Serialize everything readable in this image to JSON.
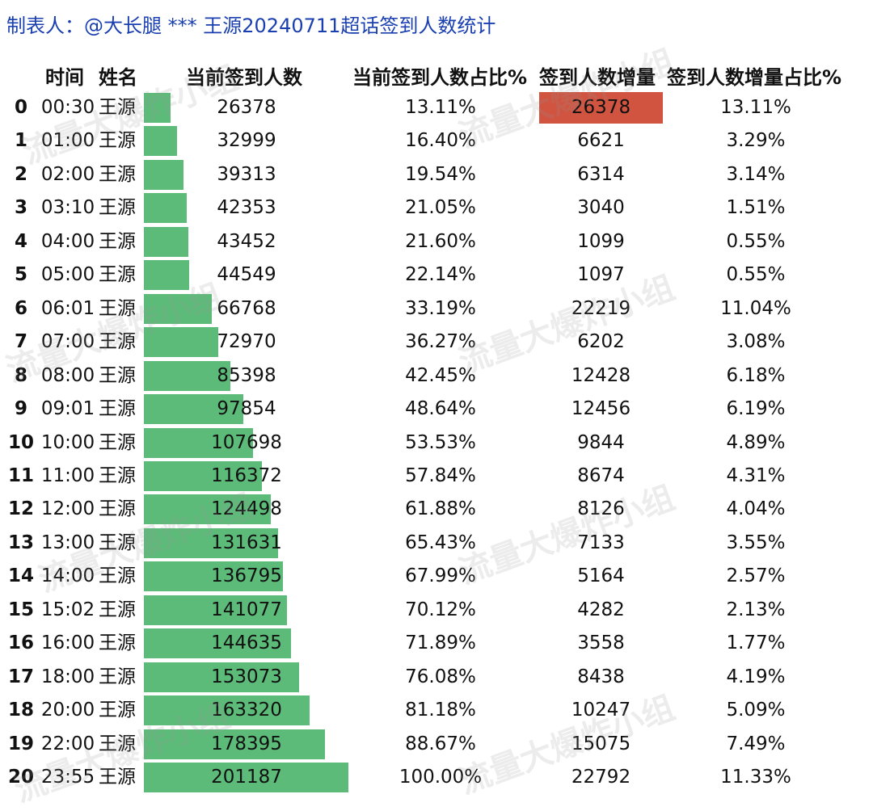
{
  "title": "制表人：@大长腿 *** 王源20240711超话签到人数统计",
  "watermark": "流量大爆炸小组",
  "headers": {
    "time": "时间",
    "name": "姓名",
    "count": "当前签到人数",
    "pct": "当前签到人数占比%",
    "inc": "签到人数增量",
    "incpct": "签到人数增量占比%"
  },
  "colors": {
    "bar": "#5dbb7a",
    "highlight": "#d05440",
    "title": "#1a3fb0"
  },
  "chart_data": {
    "type": "table",
    "columns": [
      "",
      "时间",
      "姓名",
      "当前签到人数",
      "当前签到人数占比%",
      "签到人数增量",
      "签到人数增量占比%"
    ],
    "bar_max": 201187,
    "rows": [
      {
        "idx": "0",
        "time": "00:30",
        "name": "王源",
        "count": 26378,
        "pct": "13.11%",
        "inc": "26378",
        "incpct": "13.11%"
      },
      {
        "idx": "1",
        "time": "01:00",
        "name": "王源",
        "count": 32999,
        "pct": "16.40%",
        "inc": "6621",
        "incpct": "3.29%"
      },
      {
        "idx": "2",
        "time": "02:00",
        "name": "王源",
        "count": 39313,
        "pct": "19.54%",
        "inc": "6314",
        "incpct": "3.14%"
      },
      {
        "idx": "3",
        "time": "03:10",
        "name": "王源",
        "count": 42353,
        "pct": "21.05%",
        "inc": "3040",
        "incpct": "1.51%"
      },
      {
        "idx": "4",
        "time": "04:00",
        "name": "王源",
        "count": 43452,
        "pct": "21.60%",
        "inc": "1099",
        "incpct": "0.55%"
      },
      {
        "idx": "5",
        "time": "05:00",
        "name": "王源",
        "count": 44549,
        "pct": "22.14%",
        "inc": "1097",
        "incpct": "0.55%"
      },
      {
        "idx": "6",
        "time": "06:01",
        "name": "王源",
        "count": 66768,
        "pct": "33.19%",
        "inc": "22219",
        "incpct": "11.04%"
      },
      {
        "idx": "7",
        "time": "07:00",
        "name": "王源",
        "count": 72970,
        "pct": "36.27%",
        "inc": "6202",
        "incpct": "3.08%"
      },
      {
        "idx": "8",
        "time": "08:00",
        "name": "王源",
        "count": 85398,
        "pct": "42.45%",
        "inc": "12428",
        "incpct": "6.18%"
      },
      {
        "idx": "9",
        "time": "09:01",
        "name": "王源",
        "count": 97854,
        "pct": "48.64%",
        "inc": "12456",
        "incpct": "6.19%"
      },
      {
        "idx": "10",
        "time": "10:00",
        "name": "王源",
        "count": 107698,
        "pct": "53.53%",
        "inc": "9844",
        "incpct": "4.89%"
      },
      {
        "idx": "11",
        "time": "11:00",
        "name": "王源",
        "count": 116372,
        "pct": "57.84%",
        "inc": "8674",
        "incpct": "4.31%"
      },
      {
        "idx": "12",
        "time": "12:00",
        "name": "王源",
        "count": 124498,
        "pct": "61.88%",
        "inc": "8126",
        "incpct": "4.04%"
      },
      {
        "idx": "13",
        "time": "13:00",
        "name": "王源",
        "count": 131631,
        "pct": "65.43%",
        "inc": "7133",
        "incpct": "3.55%"
      },
      {
        "idx": "14",
        "time": "14:00",
        "name": "王源",
        "count": 136795,
        "pct": "67.99%",
        "inc": "5164",
        "incpct": "2.57%"
      },
      {
        "idx": "15",
        "time": "15:02",
        "name": "王源",
        "count": 141077,
        "pct": "70.12%",
        "inc": "4282",
        "incpct": "2.13%"
      },
      {
        "idx": "16",
        "time": "16:00",
        "name": "王源",
        "count": 144635,
        "pct": "71.89%",
        "inc": "3558",
        "incpct": "1.77%"
      },
      {
        "idx": "17",
        "time": "18:00",
        "name": "王源",
        "count": 153073,
        "pct": "76.08%",
        "inc": "8438",
        "incpct": "4.19%"
      },
      {
        "idx": "18",
        "time": "20:00",
        "name": "王源",
        "count": 163320,
        "pct": "81.18%",
        "inc": "10247",
        "incpct": "5.09%"
      },
      {
        "idx": "19",
        "time": "22:00",
        "name": "王源",
        "count": 178395,
        "pct": "88.67%",
        "inc": "15075",
        "incpct": "7.49%"
      },
      {
        "idx": "20",
        "time": "23:55",
        "name": "王源",
        "count": 201187,
        "pct": "100.00%",
        "inc": "22792",
        "incpct": "11.33%"
      }
    ]
  }
}
